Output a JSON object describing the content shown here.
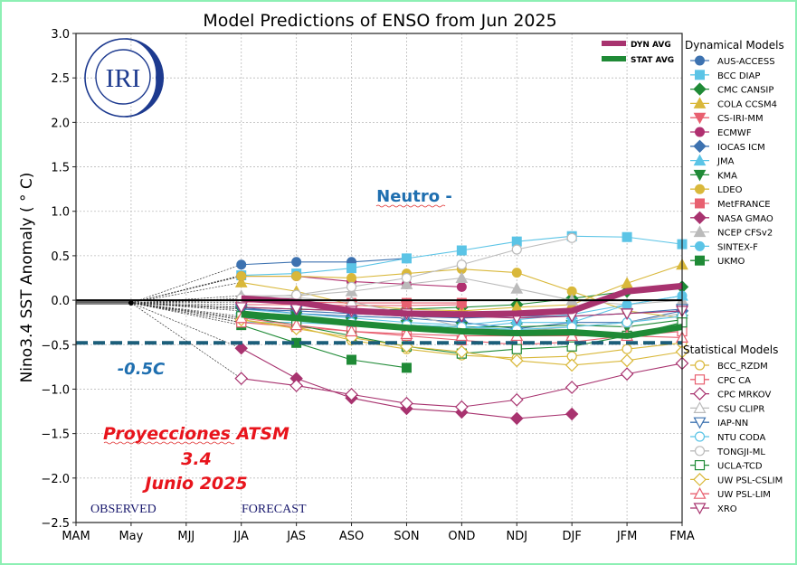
{
  "chart_data": {
    "type": "line",
    "title": "Model Predictions of ENSO from Jun 2025",
    "xlabel": "",
    "ylabel": "Nino3.4 SST Anomaly ( ° C)",
    "ylim": [
      -2.5,
      3.0
    ],
    "yticks": [
      "3.0",
      "2.5",
      "2.0",
      "1.5",
      "1.0",
      "0.5",
      "0.0",
      "−0.5",
      "−1.0",
      "−1.5",
      "−2.0",
      "−2.5"
    ],
    "ytick_values": [
      3.0,
      2.5,
      2.0,
      1.5,
      1.0,
      0.5,
      0.0,
      -0.5,
      -1.0,
      -1.5,
      -2.0,
      -2.5
    ],
    "categories": [
      "MAM",
      "May",
      "MJJ",
      "JJA",
      "JAS",
      "ASO",
      "SON",
      "OND",
      "NDJ",
      "DJF",
      "JFM",
      "FMA"
    ],
    "grid": true,
    "observed": {
      "label": "OBSERVED",
      "x": [
        "MAM",
        "May"
      ],
      "values": [
        -0.03,
        -0.03
      ]
    },
    "forecast_label": "FORECAST",
    "threshold": {
      "value": -0.48,
      "label": "-0.5C",
      "color": "#1b5e7a"
    },
    "zero_line": 0.0,
    "annotations": {
      "neutro": "Neutro -",
      "proy_line1": "Proyecciones ATSM",
      "proy_line2": "3.4",
      "proy_line3": "Junio 2025"
    },
    "logo_text": "IRI",
    "averages": [
      {
        "name": "DYN AVG",
        "color": "#a8336f",
        "start": "JJA",
        "values": [
          0.02,
          -0.02,
          -0.12,
          -0.15,
          -0.16,
          -0.15,
          -0.12,
          0.1,
          0.16
        ]
      },
      {
        "name": "STAT AVG",
        "color": "#1f8a36",
        "start": "JJA",
        "values": [
          -0.16,
          -0.2,
          -0.26,
          -0.31,
          -0.35,
          -0.37,
          -0.36,
          -0.4,
          -0.3
        ]
      }
    ],
    "legend_dynamical_title": "Dynamical Models",
    "legend_statistical_title": "Statistical Models",
    "series": [
      {
        "name": "AUS-ACCESS",
        "group": "dyn",
        "color": "#3d72b0",
        "marker": "circle",
        "values": [
          0.4,
          0.43,
          0.43,
          0.47
        ]
      },
      {
        "name": "BCC DIAP",
        "group": "dyn",
        "color": "#5bc4e6",
        "marker": "square",
        "values": [
          0.28,
          0.3,
          0.36,
          0.47,
          0.56,
          0.66,
          0.72,
          0.71,
          0.63
        ]
      },
      {
        "name": "CMC CANSIP",
        "group": "dyn",
        "color": "#1f8a36",
        "marker": "diamond",
        "values": [
          -0.08,
          -0.1,
          -0.12,
          -0.1,
          -0.08,
          -0.05,
          0.02,
          0.1,
          0.15
        ]
      },
      {
        "name": "COLA CCSM4",
        "group": "dyn",
        "color": "#d9b83a",
        "marker": "triangle-up",
        "values": [
          0.2,
          0.1,
          -0.05,
          -0.1,
          -0.12,
          -0.08,
          -0.05,
          0.19,
          0.4
        ]
      },
      {
        "name": "CS-IRI-MM",
        "group": "dyn",
        "color": "#e86070",
        "marker": "triangle-down",
        "values": [
          -0.05,
          -0.05,
          -0.06,
          -0.06,
          -0.05
        ]
      },
      {
        "name": "ECMWF",
        "group": "dyn",
        "color": "#b03070",
        "marker": "circle",
        "values": [
          0.27,
          0.27,
          0.21,
          0.18,
          0.15
        ]
      },
      {
        "name": "IOCAS ICM",
        "group": "dyn",
        "color": "#3d72b0",
        "marker": "diamond",
        "values": [
          -0.08,
          -0.15,
          -0.18,
          -0.2,
          -0.25,
          -0.32,
          -0.25,
          -0.25,
          -0.12
        ]
      },
      {
        "name": "JMA",
        "group": "dyn",
        "color": "#5bc4e6",
        "marker": "triangle-up",
        "values": [
          -0.1,
          -0.15,
          -0.2,
          -0.25,
          -0.28,
          -0.22,
          -0.16,
          -0.05,
          0.05
        ]
      },
      {
        "name": "KMA",
        "group": "dyn",
        "color": "#1f8a36",
        "marker": "triangle-down",
        "values": [
          -0.12,
          -0.18,
          -0.25,
          -0.28,
          -0.3,
          -0.3,
          -0.28,
          -0.3,
          -0.22
        ]
      },
      {
        "name": "LDEO",
        "group": "dyn",
        "color": "#d9b83a",
        "marker": "circle",
        "values": [
          0.27,
          0.27,
          0.25,
          0.3,
          0.35,
          0.31,
          0.1,
          -0.12,
          -0.2
        ]
      },
      {
        "name": "MetFRANCE",
        "group": "dyn",
        "color": "#e86070",
        "marker": "square",
        "values": [
          -0.02,
          -0.02,
          -0.03,
          -0.03,
          -0.03
        ]
      },
      {
        "name": "NASA GMAO",
        "group": "dyn",
        "color": "#a8336f",
        "marker": "diamond",
        "values": [
          -0.54,
          -0.88,
          -1.1,
          -1.22,
          -1.26,
          -1.33,
          -1.28
        ]
      },
      {
        "name": "NCEP CFSv2",
        "group": "dyn",
        "color": "#bbbbbb",
        "marker": "triangle-up",
        "values": [
          0.05,
          0.05,
          0.1,
          0.18,
          0.25,
          0.13,
          0.0,
          -0.05,
          0.0
        ]
      },
      {
        "name": "SINTEX-F",
        "group": "dyn",
        "color": "#5bc4e6",
        "marker": "circle",
        "values": [
          -0.25,
          -0.25,
          -0.28,
          -0.3,
          -0.32,
          -0.25,
          -0.25,
          -0.05,
          0.05
        ]
      },
      {
        "name": "UKMO",
        "group": "dyn",
        "color": "#1f8a36",
        "marker": "square",
        "values": [
          -0.28,
          -0.48,
          -0.67,
          -0.76
        ]
      },
      {
        "name": "BCC_RZDM",
        "group": "stat",
        "color": "#d9b83a",
        "marker": "circle-open",
        "values": [
          -0.22,
          -0.3,
          -0.45,
          -0.55,
          -0.62,
          -0.65,
          -0.63,
          -0.55,
          -0.48
        ]
      },
      {
        "name": "CPC CA",
        "group": "stat",
        "color": "#e86070",
        "marker": "square-open",
        "values": [
          -0.25,
          -0.3,
          -0.35,
          -0.4,
          -0.45,
          -0.5,
          -0.47,
          -0.4,
          -0.35
        ]
      },
      {
        "name": "CPC MRKOV",
        "group": "stat",
        "color": "#a8336f",
        "marker": "diamond-open",
        "values": [
          -0.88,
          -0.96,
          -1.06,
          -1.16,
          -1.2,
          -1.12,
          -0.98,
          -0.83,
          -0.71
        ]
      },
      {
        "name": "CSU CLIPR",
        "group": "stat",
        "color": "#bbbbbb",
        "marker": "triangle-up-open",
        "values": [
          0.0,
          0.03,
          -0.02,
          -0.15,
          -0.3,
          -0.35,
          -0.3,
          -0.25,
          -0.15
        ]
      },
      {
        "name": "IAP-NN",
        "group": "stat",
        "color": "#3d72b0",
        "marker": "triangle-down-open",
        "values": [
          -0.1,
          -0.12,
          -0.15,
          -0.18,
          -0.2,
          -0.18,
          -0.18,
          -0.15,
          -0.1
        ]
      },
      {
        "name": "NTU CODA",
        "group": "stat",
        "color": "#5bc4e6",
        "marker": "circle-open",
        "values": [
          -0.2,
          -0.22,
          -0.25,
          -0.28,
          -0.3,
          -0.33,
          -0.3,
          -0.25,
          -0.18
        ]
      },
      {
        "name": "TONGJI-ML",
        "group": "stat",
        "color": "#bbbbbb",
        "marker": "circle-open",
        "values": [
          0.02,
          0.06,
          0.15,
          0.25,
          0.4,
          0.57,
          0.7
        ]
      },
      {
        "name": "UCLA-TCD",
        "group": "stat",
        "color": "#1f8a36",
        "marker": "square-open",
        "values": [
          -0.18,
          -0.28,
          -0.4,
          -0.52,
          -0.6,
          -0.55,
          -0.52,
          -0.4,
          -0.25
        ]
      },
      {
        "name": "UW PSL-CSLIM",
        "group": "stat",
        "color": "#d9b83a",
        "marker": "diamond-open",
        "values": [
          -0.22,
          -0.32,
          -0.42,
          -0.52,
          -0.58,
          -0.68,
          -0.73,
          -0.68,
          -0.58
        ]
      },
      {
        "name": "UW PSL-LIM",
        "group": "stat",
        "color": "#e86070",
        "marker": "triangle-up-open",
        "values": [
          -0.2,
          -0.28,
          -0.35,
          -0.38,
          -0.4,
          -0.4,
          -0.4,
          -0.4,
          -0.42
        ]
      },
      {
        "name": "XRO",
        "group": "stat",
        "color": "#a8336f",
        "marker": "triangle-down-open",
        "values": [
          -0.08,
          -0.1,
          -0.12,
          -0.15,
          -0.18,
          -0.2,
          -0.18,
          -0.15,
          -0.12
        ]
      }
    ]
  }
}
